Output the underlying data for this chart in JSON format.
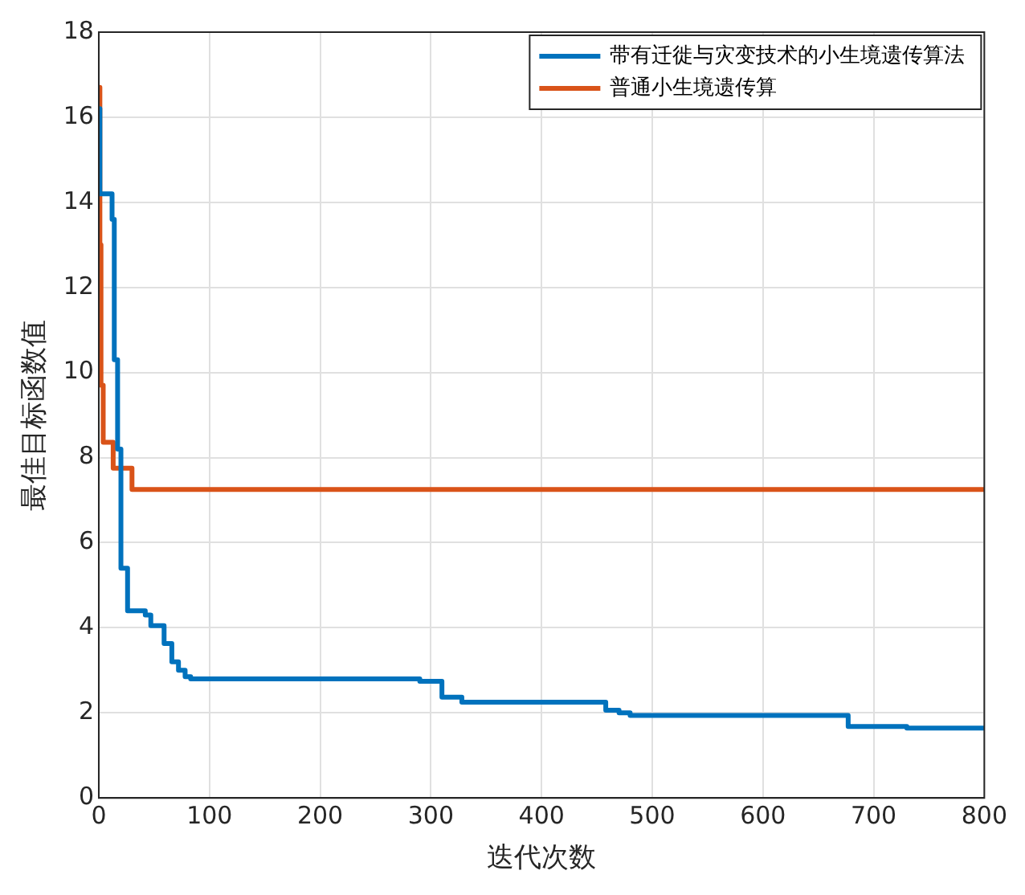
{
  "chart_data": {
    "type": "step",
    "xlabel": "迭代次数",
    "ylabel": "最佳目标函数值",
    "xlim": [
      0,
      800
    ],
    "xticks": [
      0,
      100,
      200,
      300,
      400,
      500,
      600,
      700,
      800
    ],
    "ylim": [
      0,
      18
    ],
    "yticks": [
      0,
      2,
      4,
      6,
      8,
      10,
      12,
      14,
      16,
      18
    ],
    "grid": true,
    "legend": "top right",
    "marker": "none",
    "line_style": "solid",
    "series": [
      {
        "name": "带有迁徙与灾变技术的小生境遗传算法",
        "color": "#0072bd",
        "x": [
          0,
          1,
          12,
          14,
          17,
          20,
          26,
          42,
          47,
          59,
          66,
          72,
          78,
          83,
          290,
          310,
          328,
          458,
          470,
          480,
          677,
          730,
          800
        ],
        "values": [
          16.2,
          14.2,
          13.6,
          10.3,
          8.2,
          5.4,
          4.4,
          4.3,
          4.05,
          3.63,
          3.2,
          3.0,
          2.85,
          2.8,
          2.74,
          2.37,
          2.25,
          2.06,
          2.0,
          1.94,
          1.68,
          1.64,
          1.64
        ]
      },
      {
        "name": "普通小生境遗传算",
        "color": "#d95319",
        "x": [
          0,
          1,
          2,
          4,
          13,
          30,
          800
        ],
        "values": [
          16.7,
          13,
          9.7,
          8.36,
          7.75,
          7.25,
          7.25
        ]
      }
    ]
  }
}
